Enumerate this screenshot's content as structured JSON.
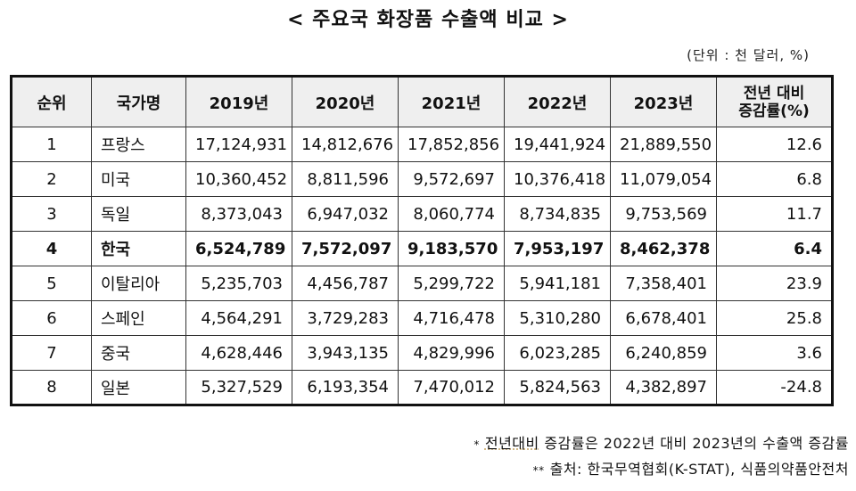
{
  "title": "< 주요국 화장품 수출액 비교 >",
  "unit": "(단위 : 천 달러, %)",
  "table": {
    "headers": {
      "rank": "순위",
      "country": "국가명",
      "years": [
        "2019년",
        "2020년",
        "2021년",
        "2022년",
        "2023년"
      ],
      "growth_line1": "전년 대비",
      "growth_line2": "증감률(%)"
    },
    "rows": [
      {
        "rank": "1",
        "country": "프랑스",
        "values": [
          "17,124,931",
          "14,812,676",
          "17,852,856",
          "19,441,924",
          "21,889,550"
        ],
        "growth": "12.6"
      },
      {
        "rank": "2",
        "country": "미국",
        "values": [
          "10,360,452",
          "8,811,596",
          "9,572,697",
          "10,376,418",
          "11,079,054"
        ],
        "growth": "6.8"
      },
      {
        "rank": "3",
        "country": "독일",
        "values": [
          "8,373,043",
          "6,947,032",
          "8,060,774",
          "8,734,835",
          "9,753,569"
        ],
        "growth": "11.7"
      },
      {
        "rank": "4",
        "country": "한국",
        "values": [
          "6,524,789",
          "7,572,097",
          "9,183,570",
          "7,953,197",
          "8,462,378"
        ],
        "growth": "6.4"
      },
      {
        "rank": "5",
        "country": "이탈리아",
        "values": [
          "5,235,703",
          "4,456,787",
          "5,299,722",
          "5,941,181",
          "7,358,401"
        ],
        "growth": "23.9"
      },
      {
        "rank": "6",
        "country": "스페인",
        "values": [
          "4,564,291",
          "3,729,283",
          "4,716,478",
          "5,310,280",
          "6,678,401"
        ],
        "growth": "25.8"
      },
      {
        "rank": "7",
        "country": "중국",
        "values": [
          "4,628,446",
          "3,943,135",
          "4,829,996",
          "6,023,285",
          "6,240,859"
        ],
        "growth": "3.6"
      },
      {
        "rank": "8",
        "country": "일본",
        "values": [
          "5,327,529",
          "6,193,354",
          "7,470,012",
          "5,824,563",
          "4,382,897"
        ],
        "growth": "-24.8"
      }
    ]
  },
  "footnotes": {
    "note1_mark": "*",
    "note1_underlined": "전년대비",
    "note1_rest": " 증감률은 2022년 대비 2023년의 수출액 증감률",
    "note2_mark": "**",
    "note2_text": "출처: 한국무역협회(K-STAT), 식품의약품안전처"
  }
}
